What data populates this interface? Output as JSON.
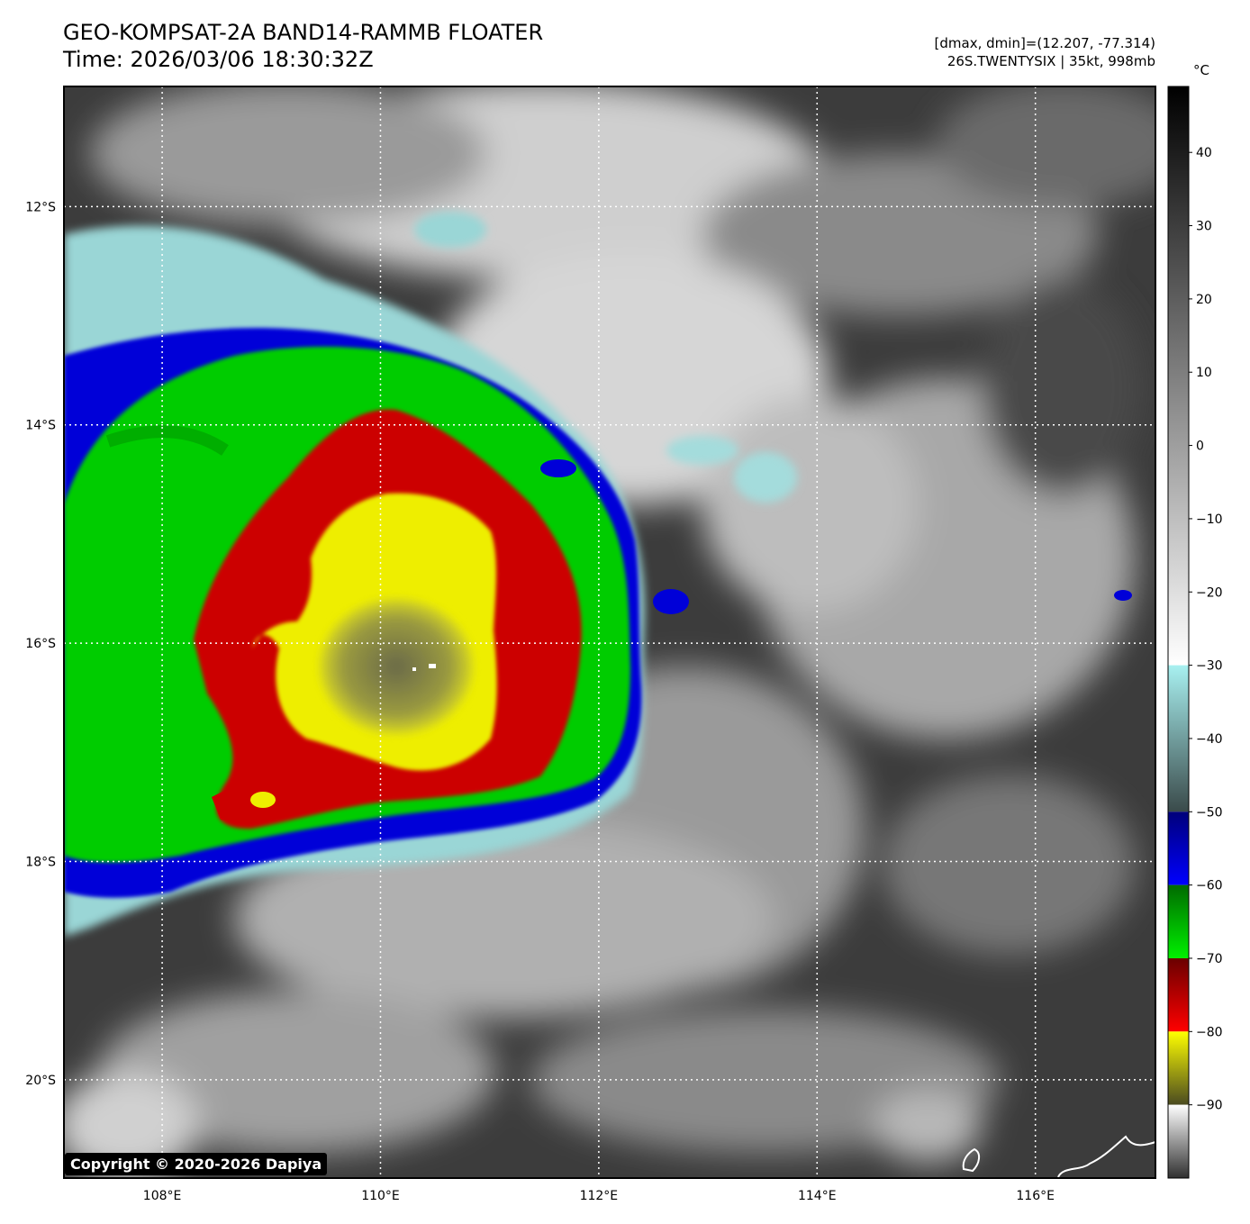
{
  "header": {
    "title": "GEO-KOMPSAT-2A BAND14-RAMMB FLOATER",
    "time": "Time: 2026/03/06 18:30:32Z",
    "range": "[dmax, dmin]=(12.207, -77.314)",
    "storm": "26S.TWENTYSIX | 35kt, 998mb"
  },
  "map": {
    "lat_labels": [
      "12°S",
      "14°S",
      "16°S",
      "18°S",
      "20°S"
    ],
    "lon_labels": [
      "108°E",
      "110°E",
      "112°E",
      "114°E",
      "116°E"
    ],
    "lat_values": [
      -12,
      -14,
      -16,
      -18,
      -20
    ],
    "lon_values": [
      108,
      110,
      112,
      114,
      116
    ],
    "lon_range": [
      107.1,
      117.1
    ],
    "lat_range": [
      -10.9,
      -20.9
    ],
    "storm_center": {
      "lon": 110.45,
      "lat": -16.25
    }
  },
  "colorbar": {
    "unit": "°C",
    "ticks": [
      40,
      30,
      20,
      10,
      0,
      -10,
      -20,
      -30,
      -40,
      -50,
      -60,
      -70,
      -80,
      -90
    ],
    "range": [
      49,
      -100
    ],
    "colors": {
      "warm_top": "#000000",
      "warm_bottom": "#ffffff",
      "cyan_top": "#a8f0f0",
      "cyan_bottom": "#3a4a4a",
      "blue": "#0000c8",
      "green": "#00c800",
      "red": "#c80000",
      "yellow": "#f0f000",
      "olive": "#5a5a20",
      "cold_top": "#ffffff",
      "cold_bottom": "#303030"
    }
  },
  "copyright": "Copyright © 2020-2026 Dapiya"
}
